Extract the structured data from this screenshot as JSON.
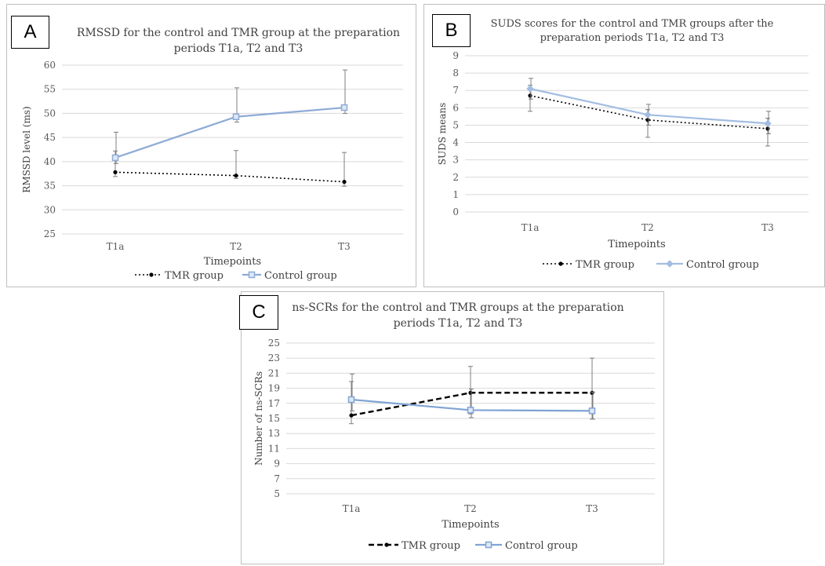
{
  "panels": [
    {
      "letter": "A"
    },
    {
      "letter": "B"
    },
    {
      "letter": "C"
    }
  ],
  "chart_data": [
    {
      "type": "line",
      "title": [
        "RMSSD for the control and TMR group at the preparation",
        "periods T1a, T2 and T3"
      ],
      "xlabel": "Timepoints",
      "ylabel": "RMSSD level (ms)",
      "categories": [
        "T1a",
        "T2",
        "T3"
      ],
      "ylim": [
        25,
        60
      ],
      "yticks": [
        "25",
        "30",
        "35",
        "40",
        "45",
        "50",
        "55",
        "60"
      ],
      "grid": true,
      "legend_position": "bottom",
      "series": [
        {
          "name": "TMR group",
          "values": [
            37.8,
            37.1,
            35.8
          ],
          "err_up": [
            4.4,
            5.2,
            6.1
          ],
          "err_down": [
            0.9,
            0.6,
            0.9
          ],
          "color": "#000000",
          "dash": "dotted",
          "marker": "dot"
        },
        {
          "name": "Control group",
          "values": [
            40.8,
            49.3,
            51.2
          ],
          "err_up": [
            5.3,
            6.0,
            7.8
          ],
          "err_down": [
            1.2,
            1.1,
            1.2
          ],
          "color": "#8eabd6",
          "dash": "solid",
          "marker": "square"
        }
      ]
    },
    {
      "type": "line",
      "title": [
        "SUDS scores for the control and TMR groups after the",
        "preparation periods T1a, T2 and T3"
      ],
      "xlabel": "Timepoints",
      "ylabel": "SUDS means",
      "categories": [
        "T1a",
        "T2",
        "T3"
      ],
      "ylim": [
        0,
        9
      ],
      "yticks": [
        "0",
        "1",
        "2",
        "3",
        "4",
        "5",
        "6",
        "7",
        "8",
        "9"
      ],
      "grid": true,
      "legend_position": "bottom",
      "series": [
        {
          "name": "TMR group",
          "values": [
            6.7,
            5.3,
            4.8
          ],
          "err_up": [
            0.6,
            0.6,
            0.6
          ],
          "err_down": [
            0.9,
            1.0,
            1.0
          ],
          "color": "#000000",
          "dash": "dotted",
          "marker": "dot"
        },
        {
          "name": "Control group",
          "values": [
            7.1,
            5.6,
            5.1
          ],
          "err_up": [
            0.6,
            0.6,
            0.7
          ],
          "err_down": [
            0.6,
            0.6,
            0.6
          ],
          "color": "#a3bde2",
          "dash": "solid",
          "marker": "diamond"
        }
      ]
    },
    {
      "type": "line",
      "title": [
        "ns-SCRs for the control and TMR groups at the preparation",
        "periods T1a, T2 and T3"
      ],
      "xlabel": "Timepoints",
      "ylabel": "Number of ns-SCRs",
      "categories": [
        "T1a",
        "T2",
        "T3"
      ],
      "ylim": [
        5,
        25
      ],
      "yticks": [
        "5",
        "7",
        "9",
        "11",
        "13",
        "15",
        "17",
        "19",
        "21",
        "23",
        "25"
      ],
      "grid": true,
      "legend_position": "bottom",
      "series": [
        {
          "name": "TMR group",
          "values": [
            15.4,
            18.4,
            18.4
          ],
          "err_up": [
            4.5,
            3.5,
            4.6
          ],
          "err_down": [
            1.1,
            2.8,
            3.5
          ],
          "color": "#000000",
          "dash": "dashed",
          "marker": "dot"
        },
        {
          "name": "Control group",
          "values": [
            17.5,
            16.1,
            16.0
          ],
          "err_up": [
            3.4,
            2.8,
            2.5
          ],
          "err_down": [
            1.5,
            1.0,
            1.1
          ],
          "color": "#7fa3d4",
          "dash": "solid",
          "marker": "square"
        }
      ]
    }
  ]
}
